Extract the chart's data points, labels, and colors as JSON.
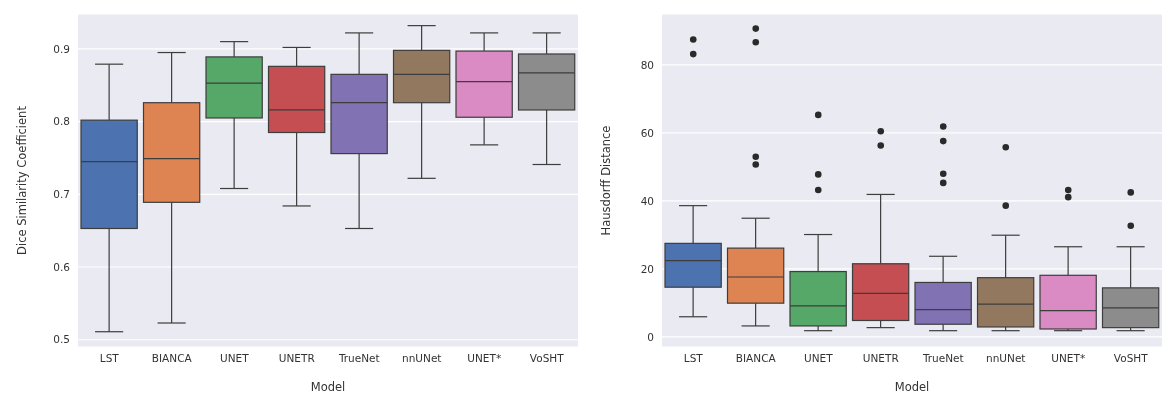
{
  "chart_data": [
    {
      "type": "box",
      "xlabel": "Model",
      "ylabel": "Dice Similarity Coefficient",
      "categories": [
        "LST",
        "BIANCA",
        "UNET",
        "UNETR",
        "TrueNet",
        "nnUNet",
        "UNET*",
        "VoSHT"
      ],
      "colors": [
        "#4c72b0",
        "#dd8452",
        "#55a868",
        "#c44e52",
        "#8172b3",
        "#937860",
        "#da8bc3",
        "#8c8c8c"
      ],
      "boxes": [
        {
          "low": 0.511,
          "q1": 0.653,
          "median": 0.745,
          "q3": 0.802,
          "high": 0.879
        },
        {
          "low": 0.523,
          "q1": 0.689,
          "median": 0.749,
          "q3": 0.826,
          "high": 0.895
        },
        {
          "low": 0.708,
          "q1": 0.805,
          "median": 0.853,
          "q3": 0.889,
          "high": 0.91
        },
        {
          "low": 0.684,
          "q1": 0.785,
          "median": 0.816,
          "q3": 0.876,
          "high": 0.902
        },
        {
          "low": 0.653,
          "q1": 0.756,
          "median": 0.826,
          "q3": 0.865,
          "high": 0.922
        },
        {
          "low": 0.722,
          "q1": 0.826,
          "median": 0.865,
          "q3": 0.898,
          "high": 0.932
        },
        {
          "low": 0.768,
          "q1": 0.806,
          "median": 0.855,
          "q3": 0.897,
          "high": 0.922
        },
        {
          "low": 0.741,
          "q1": 0.816,
          "median": 0.867,
          "q3": 0.893,
          "high": 0.922
        }
      ],
      "ylim": [
        0.49,
        0.948
      ],
      "yticks": [
        0.5,
        0.6,
        0.7,
        0.8,
        0.9
      ],
      "grid": "y"
    },
    {
      "type": "box",
      "xlabel": "Model",
      "ylabel": "Hausdorff Distance",
      "categories": [
        "LST",
        "BIANCA",
        "UNET",
        "UNETR",
        "TrueNet",
        "nnUNet",
        "UNET*",
        "VoSHT"
      ],
      "colors": [
        "#4c72b0",
        "#dd8452",
        "#55a868",
        "#c44e52",
        "#8172b3",
        "#937860",
        "#da8bc3",
        "#8c8c8c"
      ],
      "boxes": [
        {
          "low": 5.9,
          "q1": 14.6,
          "median": 22.4,
          "q3": 27.5,
          "high": 38.6,
          "outliers": [
            87.5,
            83.2
          ]
        },
        {
          "low": 3.2,
          "q1": 9.9,
          "median": 17.6,
          "q3": 26.1,
          "high": 34.9,
          "outliers": [
            90.7,
            86.7,
            53,
            50.7
          ]
        },
        {
          "low": 1.8,
          "q1": 3.2,
          "median": 9.1,
          "q3": 19.2,
          "high": 30.1,
          "outliers": [
            65.3,
            47.8,
            43.2
          ]
        },
        {
          "low": 2.7,
          "q1": 4.8,
          "median": 12.8,
          "q3": 21.5,
          "high": 41.9,
          "outliers": [
            60.5,
            56.3
          ]
        },
        {
          "low": 1.8,
          "q1": 3.7,
          "median": 8,
          "q3": 16,
          "high": 23.7,
          "outliers": [
            61.9,
            57.6,
            48,
            45.3
          ]
        },
        {
          "low": 1.8,
          "q1": 2.9,
          "median": 9.6,
          "q3": 17.4,
          "high": 29.9,
          "outliers": [
            55.8,
            38.6
          ]
        },
        {
          "low": 1.8,
          "q1": 2.3,
          "median": 7.7,
          "q3": 18.1,
          "high": 26.5,
          "outliers": [
            43.2,
            41.1
          ]
        },
        {
          "low": 1.8,
          "q1": 2.7,
          "median": 8.5,
          "q3": 14.4,
          "high": 26.5,
          "outliers": [
            42.5,
            32.7
          ]
        }
      ],
      "ylim": [
        -3,
        95
      ],
      "yticks": [
        0,
        20,
        40,
        60,
        80
      ],
      "grid": "y"
    }
  ]
}
